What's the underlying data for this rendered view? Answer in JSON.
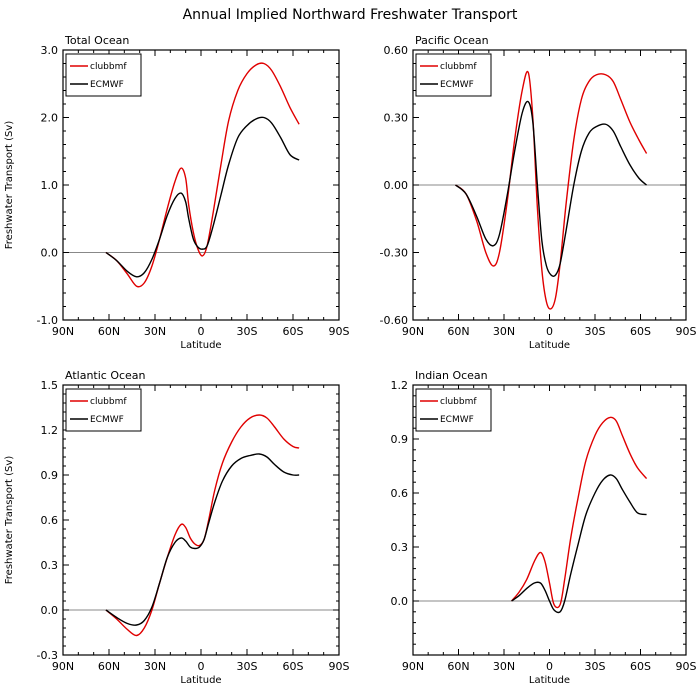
{
  "figure_title": "Annual Implied Northward Freshwater Transport",
  "chart_data": [
    {
      "type": "line",
      "title": "Total Ocean",
      "xlabel": "Latitude",
      "ylabel": "Freshwater Transport (Sv)",
      "xlim": [
        -90,
        90
      ],
      "ylim": [
        -1.0,
        3.0
      ],
      "x_ticks": [
        "90N",
        "60N",
        "30N",
        "0",
        "30S",
        "60S",
        "90S"
      ],
      "y_ticks": [
        "-1.0",
        "0.0",
        "1.0",
        "2.0",
        "3.0"
      ],
      "legend": "top-left",
      "series": [
        {
          "name": "clubbmf",
          "color": "#e00000",
          "x": [
            -62,
            -55,
            -48,
            -42,
            -37,
            -32,
            -27,
            -22,
            -17,
            -13,
            -10,
            -8,
            -5,
            -2,
            1,
            4,
            8,
            13,
            18,
            24,
            30,
            36,
            41,
            46,
            52,
            58,
            64
          ],
          "y": [
            0.0,
            -0.12,
            -0.32,
            -0.5,
            -0.45,
            -0.2,
            0.2,
            0.65,
            1.05,
            1.25,
            1.1,
            0.7,
            0.3,
            0.05,
            -0.05,
            0.1,
            0.6,
            1.3,
            1.95,
            2.4,
            2.65,
            2.78,
            2.8,
            2.7,
            2.45,
            2.15,
            1.9
          ]
        },
        {
          "name": "ECMWF",
          "color": "#000000",
          "x": [
            -62,
            -55,
            -48,
            -42,
            -37,
            -32,
            -27,
            -22,
            -17,
            -13,
            -10,
            -8,
            -5,
            -2,
            1,
            4,
            8,
            13,
            18,
            24,
            30,
            36,
            41,
            46,
            52,
            58,
            64
          ],
          "y": [
            0.0,
            -0.12,
            -0.28,
            -0.36,
            -0.3,
            -0.1,
            0.2,
            0.55,
            0.8,
            0.88,
            0.75,
            0.5,
            0.2,
            0.08,
            0.05,
            0.1,
            0.4,
            0.85,
            1.3,
            1.7,
            1.88,
            1.98,
            2.0,
            1.92,
            1.7,
            1.45,
            1.37
          ]
        }
      ]
    },
    {
      "type": "line",
      "title": "Pacific Ocean",
      "xlabel": "Latitude",
      "ylabel": "",
      "xlim": [
        -90,
        90
      ],
      "ylim": [
        -0.6,
        0.6
      ],
      "x_ticks": [
        "90N",
        "60N",
        "30N",
        "0",
        "30S",
        "60S",
        "90S"
      ],
      "y_ticks": [
        "-0.60",
        "-0.30",
        "0.00",
        "0.30",
        "0.60"
      ],
      "legend": "top-left",
      "series": [
        {
          "name": "clubbmf",
          "color": "#e00000",
          "x": [
            -62,
            -55,
            -48,
            -42,
            -37,
            -33,
            -28,
            -23,
            -18,
            -14,
            -11,
            -8,
            -5,
            -2,
            1,
            4,
            7,
            11,
            16,
            21,
            26,
            31,
            37,
            42,
            47,
            53,
            59,
            64
          ],
          "y": [
            0.0,
            -0.04,
            -0.16,
            -0.3,
            -0.36,
            -0.3,
            -0.08,
            0.2,
            0.42,
            0.5,
            0.3,
            -0.1,
            -0.38,
            -0.52,
            -0.55,
            -0.5,
            -0.35,
            -0.08,
            0.2,
            0.38,
            0.46,
            0.49,
            0.49,
            0.46,
            0.38,
            0.28,
            0.2,
            0.14
          ]
        },
        {
          "name": "ECMWF",
          "color": "#000000",
          "x": [
            -62,
            -55,
            -48,
            -42,
            -37,
            -33,
            -28,
            -23,
            -18,
            -14,
            -11,
            -8,
            -5,
            -2,
            1,
            4,
            7,
            11,
            16,
            21,
            26,
            31,
            37,
            42,
            47,
            53,
            59,
            64
          ],
          "y": [
            0.0,
            -0.04,
            -0.14,
            -0.24,
            -0.27,
            -0.22,
            -0.05,
            0.15,
            0.32,
            0.37,
            0.28,
            0.0,
            -0.25,
            -0.36,
            -0.4,
            -0.4,
            -0.35,
            -0.2,
            0.0,
            0.15,
            0.23,
            0.26,
            0.27,
            0.24,
            0.17,
            0.09,
            0.03,
            0.0
          ]
        }
      ]
    },
    {
      "type": "line",
      "title": "Atlantic Ocean",
      "xlabel": "Latitude",
      "ylabel": "Freshwater Transport (Sv)",
      "xlim": [
        -90,
        90
      ],
      "ylim": [
        -0.3,
        1.5
      ],
      "x_ticks": [
        "90N",
        "60N",
        "30N",
        "0",
        "30S",
        "60S",
        "90S"
      ],
      "y_ticks": [
        "-0.3",
        "0.0",
        "0.3",
        "0.6",
        "0.9",
        "1.2",
        "1.5"
      ],
      "legend": "top-left",
      "series": [
        {
          "name": "clubbmf",
          "color": "#e00000",
          "x": [
            -62,
            -55,
            -48,
            -42,
            -37,
            -32,
            -27,
            -22,
            -17,
            -13,
            -10,
            -7,
            -4,
            -1,
            2,
            5,
            9,
            14,
            20,
            26,
            32,
            38,
            43,
            48,
            54,
            60,
            64
          ],
          "y": [
            0.0,
            -0.06,
            -0.13,
            -0.17,
            -0.12,
            0.0,
            0.18,
            0.35,
            0.5,
            0.57,
            0.55,
            0.48,
            0.44,
            0.43,
            0.47,
            0.6,
            0.8,
            0.98,
            1.12,
            1.22,
            1.28,
            1.3,
            1.28,
            1.22,
            1.14,
            1.09,
            1.08
          ]
        },
        {
          "name": "ECMWF",
          "color": "#000000",
          "x": [
            -62,
            -55,
            -48,
            -42,
            -37,
            -32,
            -27,
            -22,
            -17,
            -13,
            -10,
            -7,
            -4,
            -1,
            2,
            5,
            9,
            14,
            20,
            26,
            32,
            38,
            43,
            48,
            54,
            60,
            64
          ],
          "y": [
            0.0,
            -0.05,
            -0.09,
            -0.1,
            -0.07,
            0.02,
            0.18,
            0.35,
            0.45,
            0.48,
            0.46,
            0.42,
            0.41,
            0.42,
            0.47,
            0.58,
            0.72,
            0.86,
            0.96,
            1.01,
            1.03,
            1.04,
            1.02,
            0.97,
            0.92,
            0.9,
            0.9
          ]
        }
      ]
    },
    {
      "type": "line",
      "title": "Indian Ocean",
      "xlabel": "Latitude",
      "ylabel": "",
      "xlim": [
        -90,
        90
      ],
      "ylim": [
        -0.3,
        1.2
      ],
      "x_ticks": [
        "90N",
        "60N",
        "30N",
        "0",
        "30S",
        "60S",
        "90S"
      ],
      "y_ticks": [
        "0.0",
        "0.3",
        "0.6",
        "0.9",
        "1.2"
      ],
      "legend": "top-left",
      "series": [
        {
          "name": "clubbmf",
          "color": "#e00000",
          "x": [
            -25,
            -20,
            -15,
            -10,
            -6,
            -3,
            0,
            3,
            7,
            10,
            14,
            19,
            24,
            30,
            35,
            40,
            44,
            48,
            53,
            58,
            64
          ],
          "y": [
            0.0,
            0.05,
            0.12,
            0.22,
            0.27,
            0.22,
            0.1,
            -0.02,
            -0.02,
            0.12,
            0.35,
            0.58,
            0.78,
            0.92,
            0.99,
            1.02,
            1.0,
            0.92,
            0.82,
            0.74,
            0.68
          ]
        },
        {
          "name": "ECMWF",
          "color": "#000000",
          "x": [
            -25,
            -20,
            -15,
            -10,
            -6,
            -3,
            0,
            3,
            7,
            10,
            14,
            19,
            24,
            30,
            35,
            40,
            44,
            48,
            53,
            58,
            64
          ],
          "y": [
            0.0,
            0.03,
            0.07,
            0.1,
            0.1,
            0.06,
            0.0,
            -0.05,
            -0.06,
            0.0,
            0.15,
            0.32,
            0.48,
            0.6,
            0.67,
            0.7,
            0.68,
            0.62,
            0.55,
            0.49,
            0.48
          ]
        }
      ]
    }
  ]
}
